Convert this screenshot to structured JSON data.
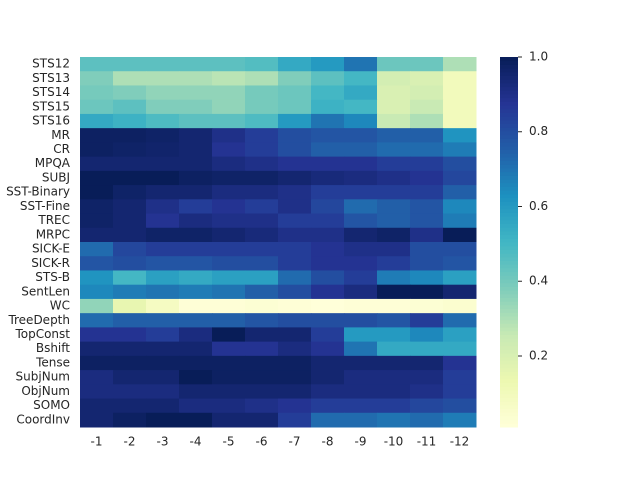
{
  "chart_data": {
    "type": "heatmap",
    "colormap": "YlGnBu",
    "x": [
      "-1",
      "-2",
      "-3",
      "-4",
      "-5",
      "-6",
      "-7",
      "-8",
      "-9",
      "-10",
      "-11",
      "-12"
    ],
    "y": [
      "STS12",
      "STS13",
      "STS14",
      "STS15",
      "STS16",
      "MR",
      "CR",
      "MPQA",
      "SUBJ",
      "SST-Binary",
      "SST-Fine",
      "TREC",
      "MRPC",
      "SICK-E",
      "SICK-R",
      "STS-B",
      "SentLen",
      "WC",
      "TreeDepth",
      "TopConst",
      "Bshift",
      "Tense",
      "SubjNum",
      "ObjNum",
      "SOMO",
      "CoordInv"
    ],
    "values": [
      [
        0.45,
        0.45,
        0.45,
        0.45,
        0.45,
        0.47,
        0.55,
        0.6,
        0.7,
        0.42,
        0.42,
        0.3
      ],
      [
        0.38,
        0.3,
        0.3,
        0.3,
        0.28,
        0.3,
        0.38,
        0.45,
        0.5,
        0.22,
        0.2,
        0.1
      ],
      [
        0.4,
        0.38,
        0.35,
        0.35,
        0.35,
        0.4,
        0.42,
        0.5,
        0.55,
        0.2,
        0.22,
        0.1
      ],
      [
        0.42,
        0.45,
        0.38,
        0.38,
        0.35,
        0.4,
        0.42,
        0.52,
        0.5,
        0.2,
        0.25,
        0.1
      ],
      [
        0.55,
        0.52,
        0.48,
        0.45,
        0.45,
        0.48,
        0.6,
        0.7,
        0.65,
        0.25,
        0.3,
        0.1
      ],
      [
        0.98,
        0.98,
        0.97,
        0.95,
        0.9,
        0.85,
        0.8,
        0.78,
        0.78,
        0.75,
        0.75,
        0.62
      ],
      [
        0.98,
        0.97,
        0.96,
        0.95,
        0.88,
        0.85,
        0.8,
        0.75,
        0.75,
        0.72,
        0.72,
        0.68
      ],
      [
        0.95,
        0.95,
        0.95,
        0.95,
        0.92,
        0.9,
        0.88,
        0.88,
        0.88,
        0.85,
        0.85,
        0.8
      ],
      [
        1,
        1,
        1,
        0.98,
        0.97,
        0.97,
        0.95,
        0.93,
        0.92,
        0.9,
        0.88,
        0.82
      ],
      [
        1,
        0.97,
        0.95,
        0.95,
        0.92,
        0.92,
        0.9,
        0.85,
        0.85,
        0.85,
        0.85,
        0.75
      ],
      [
        0.97,
        0.95,
        0.9,
        0.85,
        0.88,
        0.85,
        0.9,
        0.82,
        0.72,
        0.75,
        0.78,
        0.65
      ],
      [
        0.97,
        0.95,
        0.88,
        0.92,
        0.9,
        0.9,
        0.85,
        0.85,
        0.78,
        0.75,
        0.78,
        0.68
      ],
      [
        0.95,
        0.95,
        0.97,
        0.97,
        0.95,
        0.93,
        0.9,
        0.9,
        0.95,
        0.97,
        0.9,
        1
      ],
      [
        0.72,
        0.82,
        0.85,
        0.85,
        0.85,
        0.85,
        0.85,
        0.88,
        0.9,
        0.9,
        0.8,
        0.8
      ],
      [
        0.78,
        0.8,
        0.78,
        0.78,
        0.8,
        0.8,
        0.85,
        0.88,
        0.88,
        0.85,
        0.8,
        0.78
      ],
      [
        0.62,
        0.5,
        0.58,
        0.55,
        0.58,
        0.58,
        0.72,
        0.8,
        0.85,
        0.68,
        0.65,
        0.58
      ],
      [
        0.65,
        0.68,
        0.7,
        0.68,
        0.7,
        0.75,
        0.8,
        0.88,
        0.92,
        1,
        1,
        0.95
      ],
      [
        0.35,
        0.15,
        0.08,
        0.02,
        0.02,
        0.03,
        0.02,
        0.01,
        0.02,
        0.02,
        0.03,
        0.04
      ],
      [
        0.72,
        0.75,
        0.75,
        0.75,
        0.75,
        0.78,
        0.8,
        0.8,
        0.8,
        0.78,
        0.85,
        0.72
      ],
      [
        0.88,
        0.88,
        0.85,
        0.92,
        1,
        0.95,
        0.95,
        0.85,
        0.6,
        0.6,
        0.65,
        0.58
      ],
      [
        0.95,
        0.95,
        0.95,
        0.95,
        0.88,
        0.88,
        0.92,
        0.88,
        0.7,
        0.55,
        0.55,
        0.55
      ],
      [
        0.98,
        0.98,
        0.98,
        0.98,
        0.98,
        0.98,
        0.98,
        0.95,
        0.95,
        0.95,
        0.95,
        0.88
      ],
      [
        0.92,
        0.95,
        0.95,
        1,
        0.98,
        0.98,
        0.98,
        0.95,
        0.92,
        0.92,
        0.92,
        0.85
      ],
      [
        0.92,
        0.92,
        0.92,
        0.95,
        0.95,
        0.95,
        0.95,
        0.92,
        0.92,
        0.92,
        0.9,
        0.85
      ],
      [
        0.95,
        0.95,
        0.95,
        0.92,
        0.92,
        0.9,
        0.88,
        0.85,
        0.85,
        0.85,
        0.82,
        0.8
      ],
      [
        0.95,
        0.98,
        1,
        1,
        0.95,
        0.95,
        0.85,
        0.72,
        0.72,
        0.7,
        0.72,
        0.68
      ]
    ],
    "zlim": [
      0.01,
      1
    ],
    "zticks": [
      0.2,
      0.4,
      0.6,
      0.8,
      {
        "value": 1,
        "label": "1.0"
      }
    ]
  }
}
